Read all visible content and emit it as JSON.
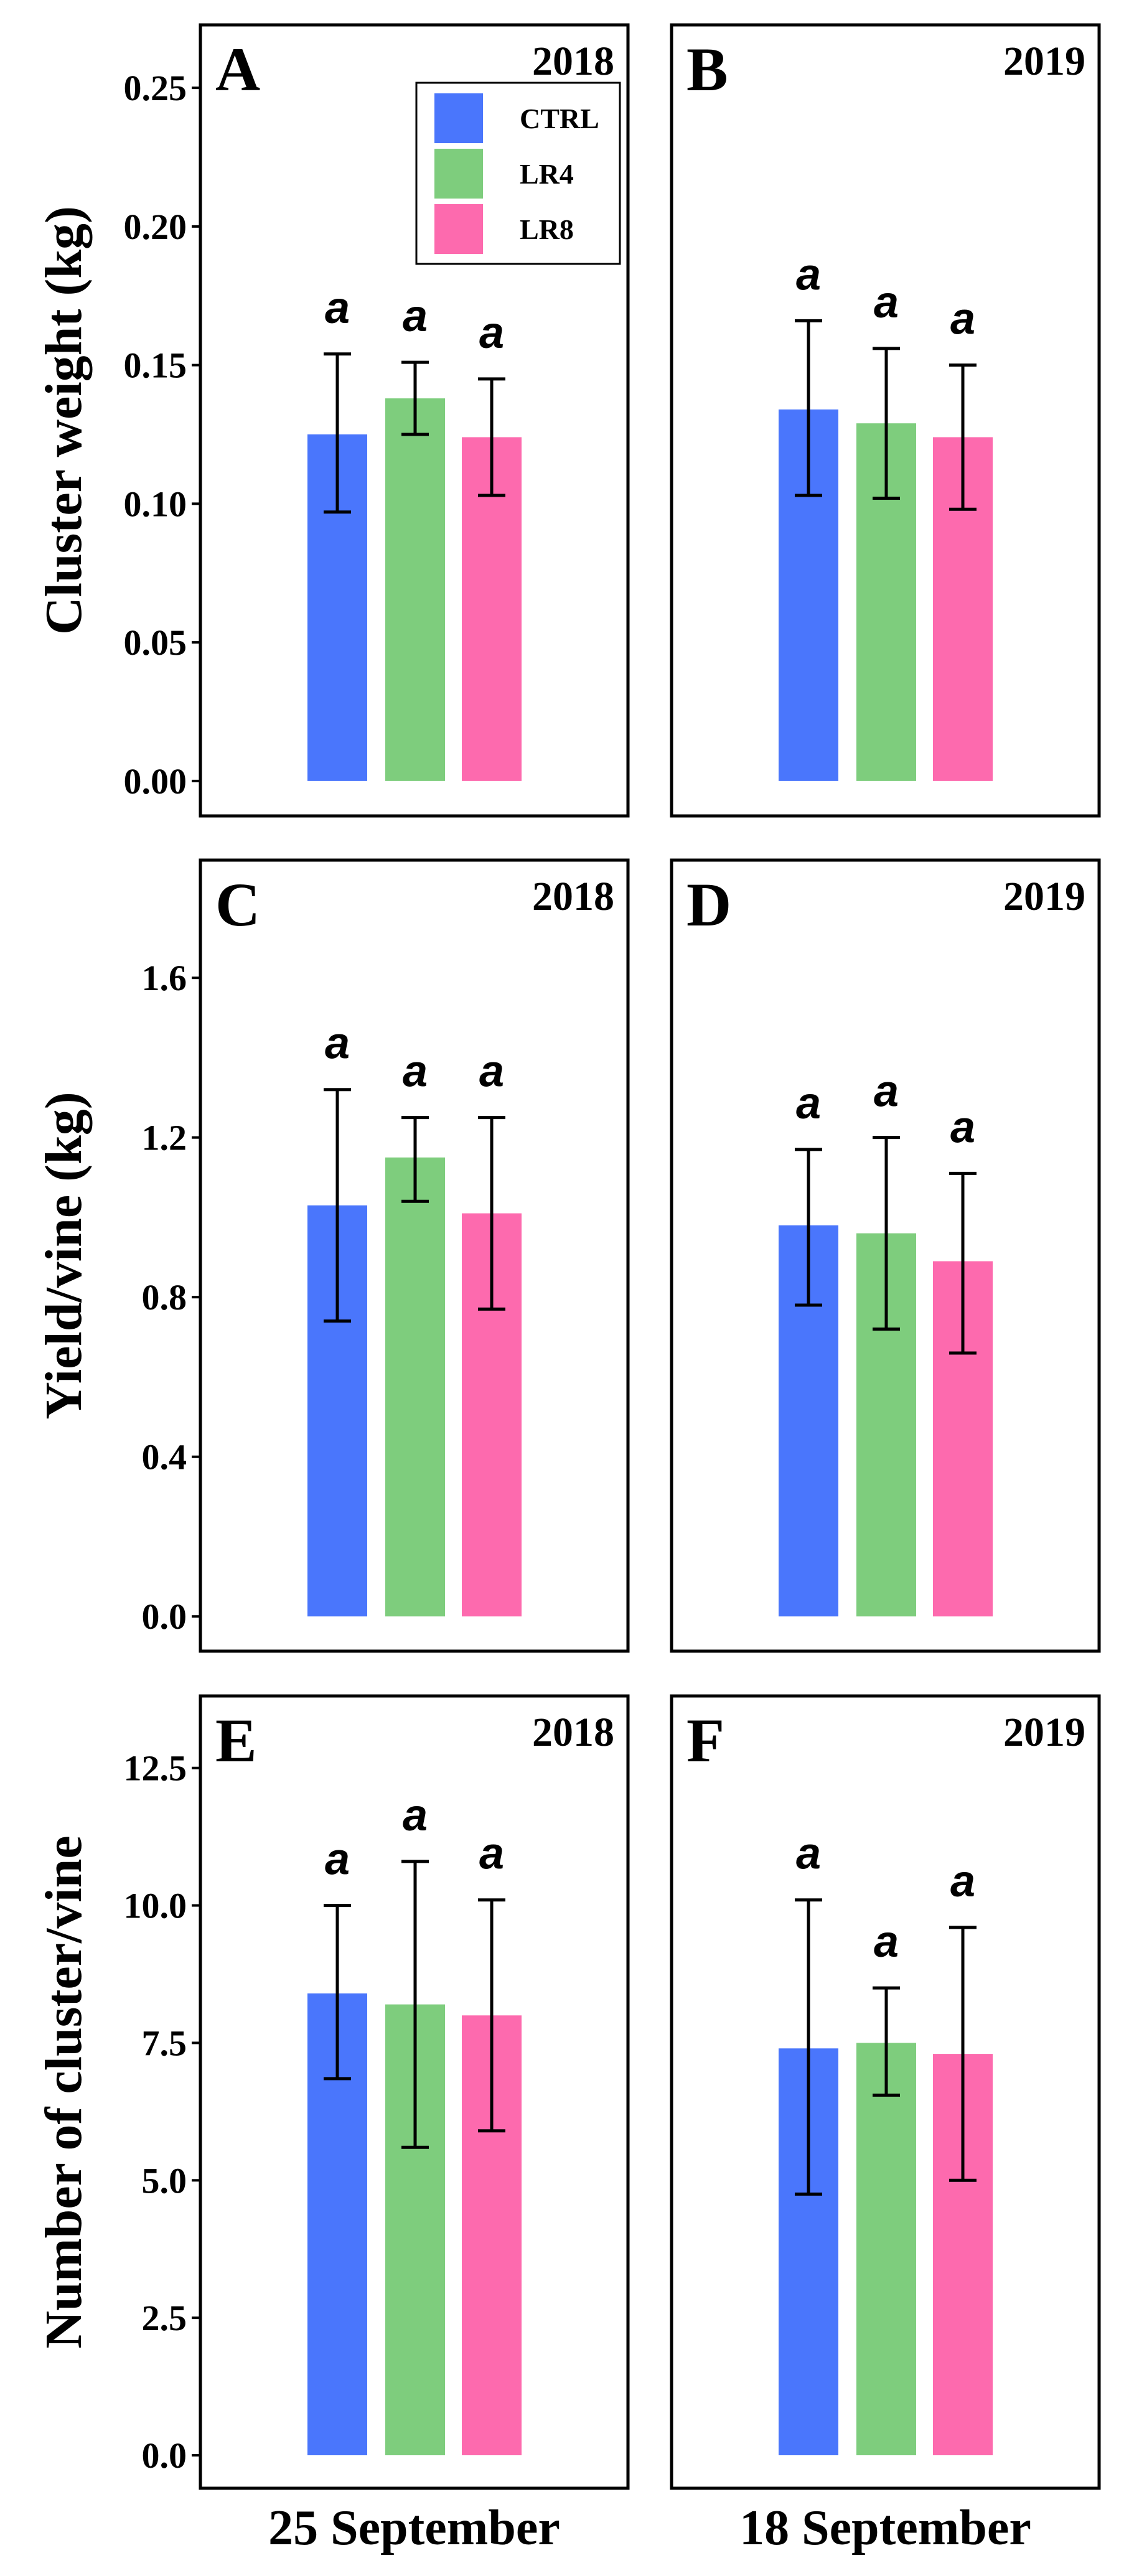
{
  "colors": {
    "CTRL": "#4a76fc",
    "LR4": "#7ecd7d",
    "LR8": "#fd6aae"
  },
  "legend": [
    "CTRL",
    "LR4",
    "LR8"
  ],
  "x_labels": [
    "25 September",
    "18 September"
  ],
  "chart_data": [
    {
      "type": "bar",
      "panel": "A",
      "year": "2018",
      "ylabel": "Cluster weight (kg)",
      "ylim": [
        -0.0126,
        0.2727
      ],
      "yticks": [
        0.0,
        0.05,
        0.1,
        0.15,
        0.2,
        0.25
      ],
      "tick_labels": [
        "0.00",
        "0.05",
        "0.10",
        "0.15",
        "0.20",
        "0.25"
      ],
      "categories": [
        "CTRL",
        "LR4",
        "LR8"
      ],
      "values": [
        0.125,
        0.138,
        0.124
      ],
      "err_low": [
        0.097,
        0.125,
        0.103
      ],
      "err_high": [
        0.154,
        0.151,
        0.145
      ],
      "letters": [
        "a",
        "a",
        "a"
      ],
      "legend": "top-right"
    },
    {
      "type": "bar",
      "panel": "B",
      "year": "2019",
      "ylabel": "",
      "ylim": [
        -0.0126,
        0.2727
      ],
      "categories": [
        "CTRL",
        "LR4",
        "LR8"
      ],
      "values": [
        0.134,
        0.129,
        0.124
      ],
      "err_low": [
        0.103,
        0.102,
        0.098
      ],
      "err_high": [
        0.166,
        0.156,
        0.15
      ],
      "letters": [
        "a",
        "a",
        "a"
      ]
    },
    {
      "type": "bar",
      "panel": "C",
      "year": "2018",
      "ylabel": "Yield/vine (kg)",
      "ylim": [
        -0.087,
        1.895
      ],
      "yticks": [
        0.0,
        0.4,
        0.8,
        1.2,
        1.6
      ],
      "tick_labels": [
        "0.0",
        "0.4",
        "0.8",
        "1.2",
        "1.6"
      ],
      "categories": [
        "CTRL",
        "LR4",
        "LR8"
      ],
      "values": [
        1.03,
        1.15,
        1.01
      ],
      "err_low": [
        0.74,
        1.04,
        0.77
      ],
      "err_high": [
        1.32,
        1.25,
        1.25
      ],
      "letters": [
        "a",
        "a",
        "a"
      ]
    },
    {
      "type": "bar",
      "panel": "D",
      "year": "2019",
      "ylabel": "",
      "ylim": [
        -0.087,
        1.895
      ],
      "categories": [
        "CTRL",
        "LR4",
        "LR8"
      ],
      "values": [
        0.98,
        0.96,
        0.89
      ],
      "err_low": [
        0.78,
        0.72,
        0.66
      ],
      "err_high": [
        1.17,
        1.2,
        1.11
      ],
      "letters": [
        "a",
        "a",
        "a"
      ]
    },
    {
      "type": "bar",
      "panel": "E",
      "year": "2018",
      "ylabel": "Number of cluster/vine",
      "ylim": [
        -0.6,
        13.81
      ],
      "yticks": [
        0.0,
        2.5,
        5.0,
        7.5,
        10.0,
        12.5
      ],
      "tick_labels": [
        "0.0",
        "2.5",
        "5.0",
        "7.5",
        "10.0",
        "12.5"
      ],
      "categories": [
        "CTRL",
        "LR4",
        "LR8"
      ],
      "values": [
        8.4,
        8.2,
        8.0
      ],
      "err_low": [
        6.85,
        5.6,
        5.9
      ],
      "err_high": [
        10.0,
        10.8,
        10.1
      ],
      "letters": [
        "a",
        "a",
        "a"
      ]
    },
    {
      "type": "bar",
      "panel": "F",
      "year": "2019",
      "ylabel": "",
      "ylim": [
        -0.6,
        13.81
      ],
      "categories": [
        "CTRL",
        "LR4",
        "LR8"
      ],
      "values": [
        7.4,
        7.5,
        7.3
      ],
      "err_low": [
        4.75,
        6.55,
        5.0
      ],
      "err_high": [
        10.1,
        8.5,
        9.6
      ],
      "letters": [
        "a",
        "a",
        "a"
      ]
    }
  ]
}
